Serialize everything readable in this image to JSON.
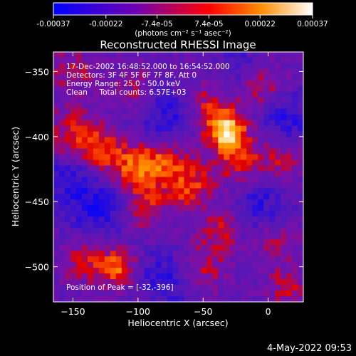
{
  "colorbar": {
    "ticks": [
      "-0.00037",
      "-0.00022",
      "-7.4e-05",
      "7.4e-05",
      "0.00022",
      "0.00037"
    ],
    "tick_values": [
      -0.00037,
      -0.00022,
      -7.4e-05,
      7.4e-05,
      0.00022,
      0.00037
    ],
    "range": [
      -0.00037,
      0.00037
    ],
    "unit_label": "(photons cm⁻² s⁻¹ asec⁻²)",
    "colors": [
      "#0000ff",
      "#7000b0",
      "#ff0000",
      "#ff8c00",
      "#ffffff"
    ]
  },
  "chart_data": {
    "type": "heatmap",
    "title": "Reconstructed RHESSI Image",
    "xlabel": "Heliocentric X (arcsec)",
    "ylabel": "Heliocentric Y (arcsec)",
    "xlim": [
      -165,
      27
    ],
    "ylim": [
      -527,
      -335
    ],
    "x_ticks": [
      -150,
      -100,
      -50,
      0
    ],
    "y_ticks": [
      -350,
      -400,
      -450,
      -500
    ],
    "annotations": [
      "17-Dec-2002 16:48:52.000 to 16:54:52.000",
      "Detectors: 3F 4F 5F 6F 7F 8F, Att 0",
      "Energy Range: 25.0 - 50.0 keV",
      "Clean     Total counts: 6.57E+03"
    ],
    "peak_label": "Position of Peak = [-32,-396]",
    "peak": [
      -32,
      -396
    ],
    "blobs": [
      {
        "x": -32,
        "y": -396,
        "a": 1.0,
        "s": 10
      },
      {
        "x": -48,
        "y": -378,
        "a": 0.55,
        "s": 14
      },
      {
        "x": -22,
        "y": -422,
        "a": 0.55,
        "s": 16
      },
      {
        "x": -80,
        "y": -420,
        "a": 0.65,
        "s": 14
      },
      {
        "x": -105,
        "y": -425,
        "a": 0.6,
        "s": 13
      },
      {
        "x": -128,
        "y": -410,
        "a": 0.5,
        "s": 12
      },
      {
        "x": -150,
        "y": -400,
        "a": 0.5,
        "s": 14
      },
      {
        "x": -95,
        "y": -455,
        "a": 0.45,
        "s": 12
      },
      {
        "x": -60,
        "y": -440,
        "a": 0.5,
        "s": 12
      },
      {
        "x": -35,
        "y": -470,
        "a": 0.45,
        "s": 12
      },
      {
        "x": -115,
        "y": -500,
        "a": 0.7,
        "s": 10
      },
      {
        "x": -140,
        "y": -495,
        "a": 0.45,
        "s": 12
      },
      {
        "x": -5,
        "y": -360,
        "a": 0.45,
        "s": 12
      },
      {
        "x": 10,
        "y": -420,
        "a": 0.35,
        "s": 12
      },
      {
        "x": -50,
        "y": -500,
        "a": 0.4,
        "s": 12
      },
      {
        "x": 5,
        "y": -480,
        "a": 0.35,
        "s": 12
      },
      {
        "x": -100,
        "y": -365,
        "a": 0.35,
        "s": 12
      },
      {
        "x": -150,
        "y": -350,
        "a": 0.35,
        "s": 12
      },
      {
        "x": 15,
        "y": -515,
        "a": 0.4,
        "s": 10
      },
      {
        "x": -75,
        "y": -385,
        "a": -0.55,
        "s": 18
      },
      {
        "x": -130,
        "y": -455,
        "a": -0.5,
        "s": 18
      },
      {
        "x": -10,
        "y": -450,
        "a": -0.5,
        "s": 18
      },
      {
        "x": -80,
        "y": -510,
        "a": -0.45,
        "s": 16
      },
      {
        "x": -20,
        "y": -345,
        "a": -0.3,
        "s": 14
      },
      {
        "x": 15,
        "y": -385,
        "a": -0.45,
        "s": 14
      },
      {
        "x": -155,
        "y": -430,
        "a": -0.4,
        "s": 14
      }
    ]
  },
  "footer": {
    "timestamp": "4-May-2022 09:53"
  }
}
